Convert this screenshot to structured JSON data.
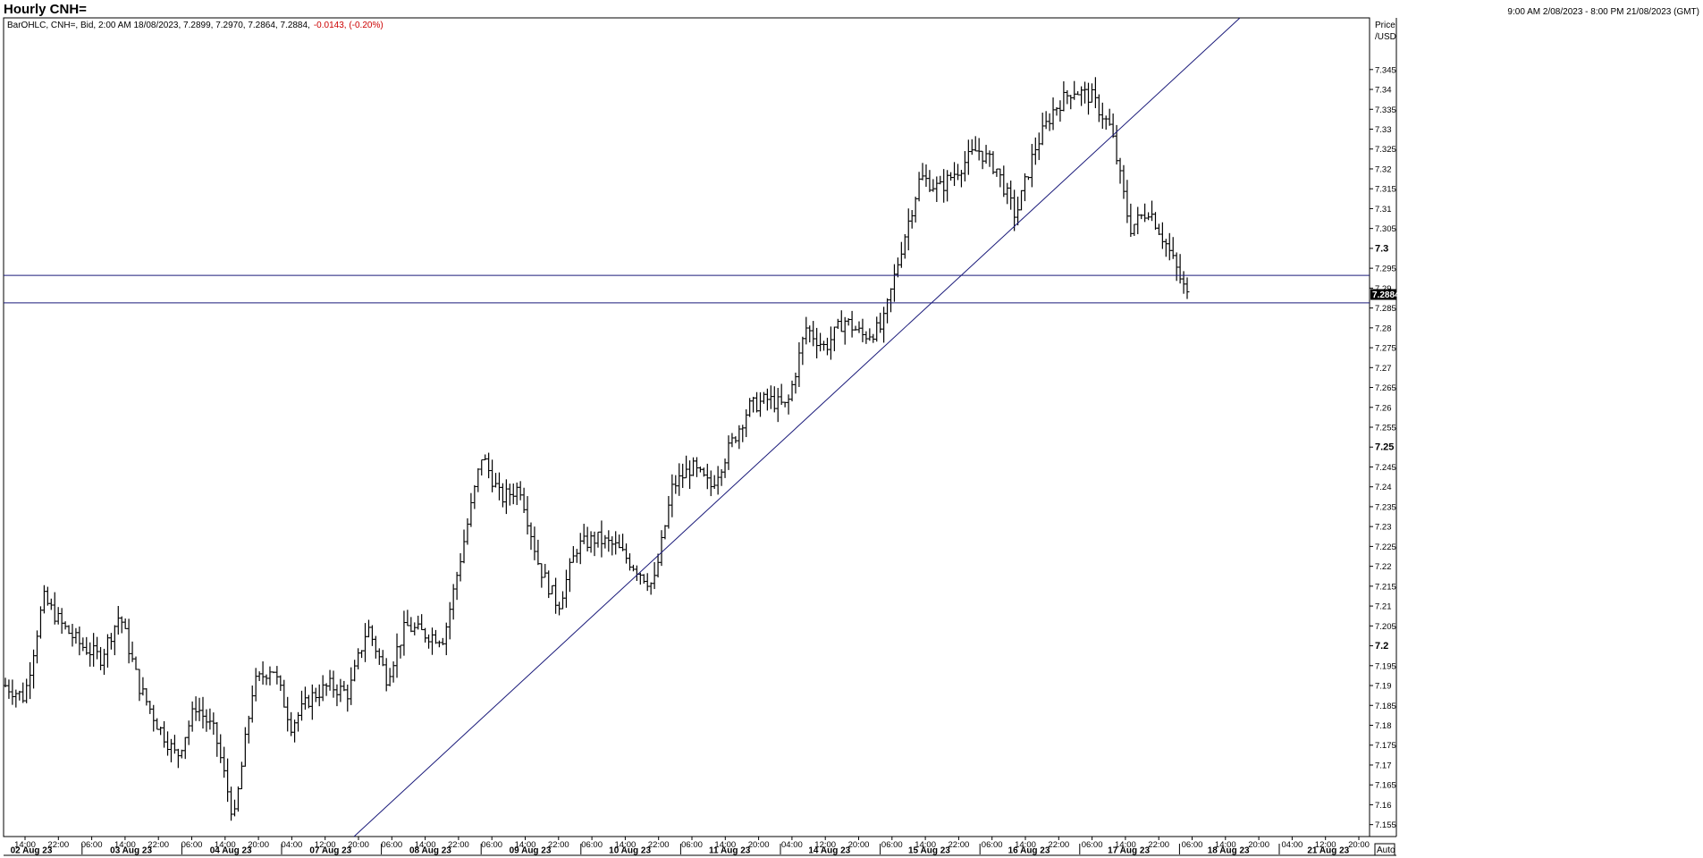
{
  "header": {
    "title": "Hourly CNH=",
    "date_range": "9:00 AM 2/08/2023 - 8:00 PM 21/08/2023 (GMT)"
  },
  "legend": {
    "prefix": "BarOHLC, CNH=, Bid, 2:00 AM 18/08/2023, 7.2899, 7.2970, 7.2864, 7.2884,",
    "change": "-0.0143, (-0.20%)"
  },
  "price_axis": {
    "label_line1": "Price",
    "label_line2": "/USD",
    "last_price": "7.2884",
    "auto_label": "Auto"
  },
  "colors": {
    "bars": "#000000",
    "lines": "#1a1a7a",
    "change_negative": "#cc0000",
    "last_price_bg": "#000000"
  },
  "chart_data": {
    "type": "ohlc",
    "ylim": [
      7.152,
      7.358
    ],
    "yticks": [
      "7.155",
      "7.16",
      "7.165",
      "7.17",
      "7.175",
      "7.18",
      "7.185",
      "7.19",
      "7.195",
      "7.2",
      "7.205",
      "7.21",
      "7.215",
      "7.22",
      "7.225",
      "7.23",
      "7.235",
      "7.24",
      "7.245",
      "7.25",
      "7.255",
      "7.26",
      "7.265",
      "7.27",
      "7.275",
      "7.28",
      "7.285",
      "7.29",
      "7.295",
      "7.3",
      "7.305",
      "7.31",
      "7.315",
      "7.32",
      "7.325",
      "7.33",
      "7.335",
      "7.34",
      "7.345"
    ],
    "yticks_bold": [
      "7.2",
      "7.25",
      "7.3"
    ],
    "time_labels": [
      "14:00",
      "22:00",
      "06:00",
      "14:00",
      "22:00",
      "06:00",
      "14:00",
      "20:00",
      "04:00",
      "12:00",
      "20:00",
      "06:00",
      "14:00",
      "22:00",
      "06:00",
      "14:00",
      "22:00",
      "06:00",
      "14:00",
      "22:00",
      "06:00",
      "14:00",
      "20:00",
      "04:00",
      "12:00",
      "20:00",
      "06:00",
      "14:00",
      "22:00",
      "06:00",
      "14:00",
      "22:00",
      "06:00",
      "14:00",
      "22:00",
      "06:00",
      "14:00",
      "20:00",
      "04:00",
      "12:00",
      "20:00"
    ],
    "day_labels": [
      "02 Aug 23",
      "03 Aug 23",
      "04 Aug 23",
      "07 Aug 23",
      "08 Aug 23",
      "09 Aug 23",
      "10 Aug 23",
      "11 Aug 23",
      "14 Aug 23",
      "15 Aug 23",
      "16 Aug 23",
      "17 Aug 23",
      "18 Aug 23",
      "21 Aug 23"
    ],
    "anchors": [
      7.19,
      7.187,
      7.212,
      7.205,
      7.2,
      7.197,
      7.208,
      7.19,
      7.18,
      7.172,
      7.185,
      7.178,
      7.156,
      7.19,
      7.195,
      7.18,
      7.187,
      7.19,
      7.188,
      7.205,
      7.192,
      7.205,
      7.203,
      7.202,
      7.225,
      7.248,
      7.237,
      7.24,
      7.22,
      7.21,
      7.225,
      7.227,
      7.225,
      7.22,
      7.215,
      7.24,
      7.245,
      7.24,
      7.25,
      7.26,
      7.262,
      7.26,
      7.28,
      7.275,
      7.282,
      7.278,
      7.28,
      7.3,
      7.318,
      7.315,
      7.32,
      7.325,
      7.32,
      7.308,
      7.325,
      7.335,
      7.34,
      7.338,
      7.33,
      7.305,
      7.31,
      7.3,
      7.288
    ],
    "horizontal_lines": [
      7.2932,
      7.2863
    ],
    "trendline": {
      "start": [
        "07 Aug 23 20:00",
        7.152
      ],
      "end": [
        "17 Aug 23 03:00",
        7.358
      ]
    }
  }
}
